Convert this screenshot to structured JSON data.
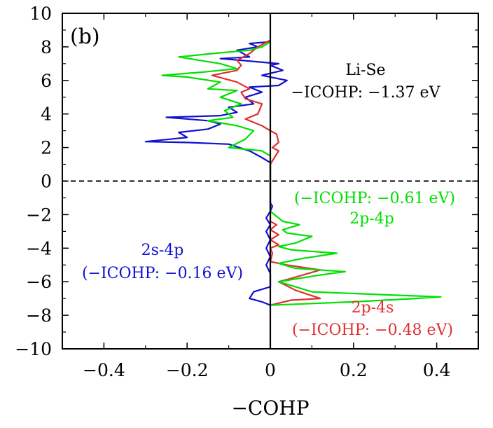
{
  "chart_data": {
    "type": "line",
    "panel_label": "(b)",
    "xlabel": "−COHP",
    "ylabel": "",
    "xlim": [
      -0.5,
      0.5
    ],
    "ylim": [
      -10,
      10
    ],
    "x_ticks": [
      -0.4,
      -0.2,
      0,
      0.2,
      0.4
    ],
    "x_tick_labels": [
      "−0.4",
      "−0.2",
      "0",
      "0.2",
      "0.4"
    ],
    "y_ticks": [
      -10,
      -8,
      -6,
      -4,
      -2,
      0,
      2,
      4,
      6,
      8,
      10
    ],
    "y_tick_labels": [
      "−10",
      "−8",
      "−6",
      "−4",
      "−2",
      "0",
      "2",
      "4",
      "6",
      "8",
      "10"
    ],
    "fermi_level": 0,
    "colors": {
      "blue": "#1010d0",
      "red": "#e03030",
      "green": "#00e000"
    },
    "series": [
      {
        "name": "2s-4p",
        "color": "#1010d0",
        "points": [
          [
            0,
            -7.4
          ],
          [
            -0.02,
            -7.2
          ],
          [
            -0.05,
            -7.0
          ],
          [
            -0.04,
            -6.6
          ],
          [
            0,
            -6.3
          ],
          [
            0,
            -5.5
          ],
          [
            -0.01,
            -5.0
          ],
          [
            0,
            -4.5
          ],
          [
            -0.01,
            -4.0
          ],
          [
            0,
            -3.5
          ],
          [
            -0.01,
            -3.0
          ],
          [
            0,
            -2.6
          ],
          [
            -0.01,
            -2.2
          ],
          [
            0,
            -1.8
          ],
          [
            0.005,
            -1.5
          ],
          [
            0,
            -1.3
          ],
          [
            0,
            1.1
          ],
          [
            -0.02,
            1.4
          ],
          [
            -0.05,
            1.8
          ],
          [
            -0.1,
            2.2
          ],
          [
            -0.2,
            2.3
          ],
          [
            -0.3,
            2.35
          ],
          [
            -0.2,
            2.6
          ],
          [
            -0.22,
            2.9
          ],
          [
            -0.15,
            3.1
          ],
          [
            -0.12,
            3.4
          ],
          [
            -0.15,
            3.6
          ],
          [
            -0.25,
            3.8
          ],
          [
            -0.12,
            3.9
          ],
          [
            -0.08,
            4.1
          ],
          [
            -0.1,
            4.4
          ],
          [
            -0.04,
            4.6
          ],
          [
            -0.06,
            5.0
          ],
          [
            -0.02,
            5.3
          ],
          [
            -0.05,
            5.6
          ],
          [
            0.02,
            5.7
          ],
          [
            0.04,
            6.0
          ],
          [
            -0.02,
            6.3
          ],
          [
            0.03,
            6.6
          ],
          [
            0.0,
            6.9
          ],
          [
            0.02,
            7.0
          ],
          [
            -0.07,
            7.2
          ],
          [
            -0.12,
            7.3
          ],
          [
            -0.05,
            7.4
          ],
          [
            -0.08,
            7.8
          ],
          [
            -0.03,
            8.0
          ],
          [
            -0.05,
            8.2
          ],
          [
            0,
            8.3
          ]
        ]
      },
      {
        "name": "2p-4s",
        "color": "#e03030",
        "points": [
          [
            0,
            -7.4
          ],
          [
            0.05,
            -7.1
          ],
          [
            0.12,
            -7.0
          ],
          [
            0.06,
            -6.5
          ],
          [
            0.02,
            -6.0
          ],
          [
            0.05,
            -5.8
          ],
          [
            0.12,
            -5.3
          ],
          [
            0.04,
            -5.0
          ],
          [
            0,
            -4.8
          ],
          [
            0.005,
            -4.3
          ],
          [
            0,
            -4.0
          ],
          [
            0.02,
            -3.8
          ],
          [
            0,
            -3.5
          ],
          [
            0.02,
            -3.2
          ],
          [
            0,
            -2.9
          ],
          [
            0.015,
            -2.6
          ],
          [
            0,
            -2.4
          ],
          [
            0,
            1.0
          ],
          [
            0.01,
            1.4
          ],
          [
            0.02,
            1.8
          ],
          [
            0.005,
            2.0
          ],
          [
            0.02,
            2.3
          ],
          [
            0.015,
            2.8
          ],
          [
            0,
            3.0
          ],
          [
            -0.02,
            3.3
          ],
          [
            -0.06,
            3.7
          ],
          [
            -0.03,
            4.0
          ],
          [
            -0.02,
            4.6
          ],
          [
            -0.06,
            4.9
          ],
          [
            -0.07,
            5.3
          ],
          [
            -0.05,
            5.5
          ],
          [
            -0.08,
            5.9
          ],
          [
            -0.14,
            6.3
          ],
          [
            -0.08,
            6.6
          ],
          [
            -0.07,
            6.9
          ],
          [
            -0.08,
            7.2
          ],
          [
            -0.05,
            7.6
          ],
          [
            -0.03,
            8.0
          ],
          [
            0,
            8.4
          ]
        ]
      },
      {
        "name": "2p-4p",
        "color": "#00e000",
        "points": [
          [
            0,
            -7.4
          ],
          [
            0.1,
            -7.3
          ],
          [
            0.2,
            -7.2
          ],
          [
            0.35,
            -7.0
          ],
          [
            0.41,
            -6.9
          ],
          [
            0.3,
            -6.8
          ],
          [
            0.1,
            -6.6
          ],
          [
            0.02,
            -6.0
          ],
          [
            0.12,
            -5.6
          ],
          [
            0.18,
            -5.4
          ],
          [
            0.06,
            -5.2
          ],
          [
            0.02,
            -4.9
          ],
          [
            0.08,
            -4.6
          ],
          [
            0.16,
            -4.3
          ],
          [
            0.05,
            -4.1
          ],
          [
            0.02,
            -3.9
          ],
          [
            0.06,
            -3.7
          ],
          [
            0.1,
            -3.3
          ],
          [
            0.04,
            -3.1
          ],
          [
            0.03,
            -2.9
          ],
          [
            0.07,
            -2.6
          ],
          [
            0.03,
            -2.4
          ],
          [
            0.02,
            -2.2
          ],
          [
            0,
            -1.8
          ],
          [
            0,
            1.5
          ],
          [
            -0.02,
            1.8
          ],
          [
            -0.1,
            2.0
          ],
          [
            -0.06,
            2.5
          ],
          [
            -0.04,
            3.0
          ],
          [
            -0.08,
            3.3
          ],
          [
            -0.15,
            3.6
          ],
          [
            -0.09,
            3.8
          ],
          [
            -0.11,
            4.2
          ],
          [
            -0.07,
            4.6
          ],
          [
            -0.12,
            5.0
          ],
          [
            -0.08,
            5.4
          ],
          [
            -0.15,
            5.5
          ],
          [
            -0.12,
            5.9
          ],
          [
            -0.2,
            6.2
          ],
          [
            -0.26,
            6.3
          ],
          [
            -0.16,
            6.5
          ],
          [
            -0.08,
            6.7
          ],
          [
            -0.12,
            7.0
          ],
          [
            -0.22,
            7.4
          ],
          [
            -0.14,
            7.6
          ],
          [
            -0.05,
            7.8
          ],
          [
            -0.02,
            8.0
          ],
          [
            0,
            8.3
          ]
        ]
      }
    ],
    "annotations": {
      "li_se_title": "Li-Se",
      "li_se_value": "−ICOHP: −1.37 eV",
      "green_label": "2p-4p",
      "green_value": "(−ICOHP: −0.61 eV)",
      "blue_label": "2s-4p",
      "blue_value": "(−ICOHP: −0.16 eV)",
      "red_label": "2p-4s",
      "red_value": "(−ICOHP: −0.48 eV)"
    }
  }
}
